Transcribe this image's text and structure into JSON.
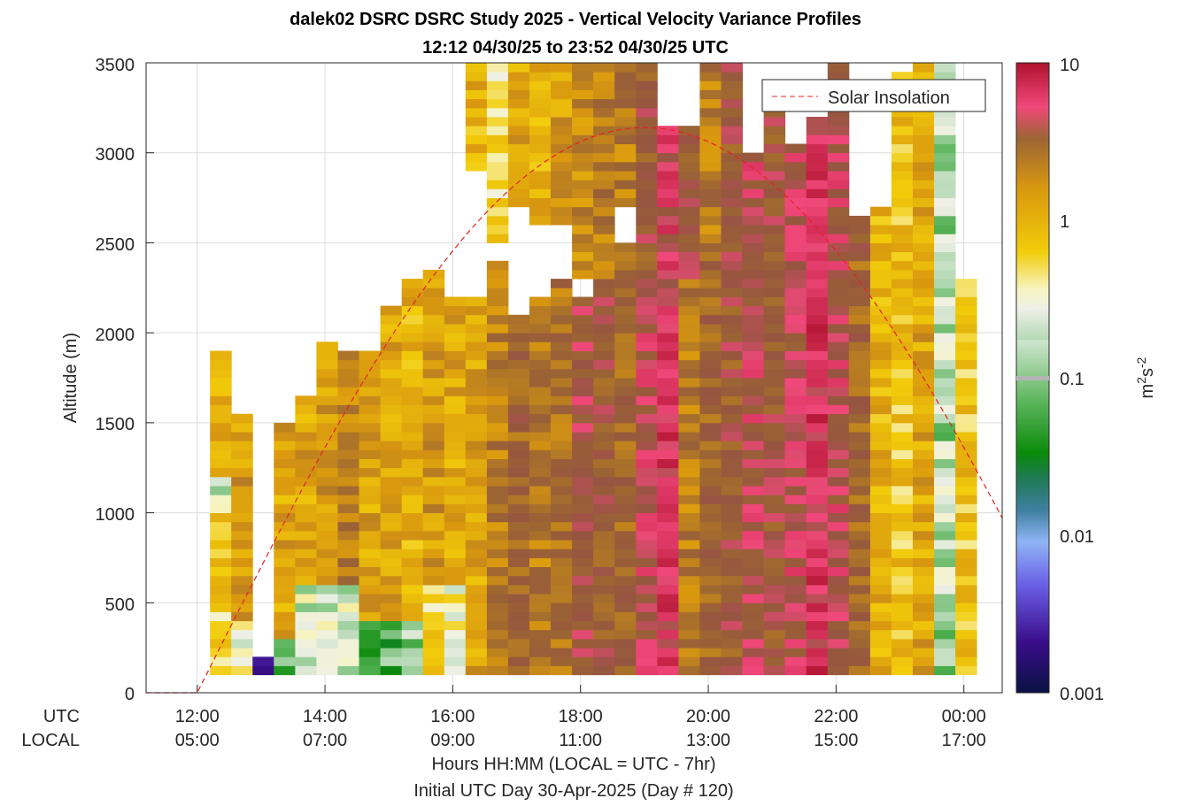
{
  "chart_data": {
    "type": "heatmap",
    "title": "dalek02 DSRC DSRC Study 2025 - Vertical Velocity Variance Profiles",
    "subtitle": "12:12 04/30/25 to 23:52 04/30/25  UTC",
    "ylabel": "Altitude (m)",
    "xlabel": "Hours HH:MM  (LOCAL = UTC - 7hr)",
    "xlabel2": "Initial UTC Day 30-Apr-2025 (Day # 120)",
    "row_labels": [
      "UTC",
      "LOCAL"
    ],
    "ylim": [
      0,
      3500
    ],
    "yticks": [
      "0",
      "500",
      "1000",
      "1500",
      "2000",
      "2500",
      "3000",
      "3500"
    ],
    "xlim_hours_utc": [
      11.2,
      24.6
    ],
    "xticks_utc": [
      "12:00",
      "14:00",
      "16:00",
      "18:00",
      "20:00",
      "22:00",
      "00:00"
    ],
    "xticks_local": [
      "05:00",
      "07:00",
      "09:00",
      "11:00",
      "13:00",
      "15:00",
      "17:00"
    ],
    "colorbar": {
      "label": "m^2s^-2",
      "scale": "log",
      "range": [
        0.001,
        10
      ],
      "ticks": [
        "0.001",
        "0.01",
        "0.1",
        "1",
        "10"
      ]
    },
    "legend": {
      "position": "top-right",
      "entries": [
        "Solar Insolation"
      ]
    },
    "solar_insolation": {
      "line_style": "dashed",
      "color": "#e8211f",
      "sunrise_utc_h": 12.0,
      "noon_utc_h": 19.0,
      "peak_altitude_m": 3140
    },
    "time_bin_minutes": 20,
    "altitude_bin_m": 50,
    "note_encoding": "each profile lists altitude segments [bottom_m, top_m, variance_m2s-2]",
    "profiles": [
      {
        "t": "12:12",
        "segments": [
          [
            100,
            500,
            0.2
          ],
          [
            500,
            1000,
            0.3
          ],
          [
            1000,
            1200,
            0.1
          ],
          [
            1200,
            1900,
            0.4
          ]
        ]
      },
      {
        "t": "12:32",
        "segments": [
          [
            100,
            400,
            0.12
          ],
          [
            400,
            1550,
            0.6
          ]
        ]
      },
      {
        "t": "12:52",
        "segments": [
          [
            100,
            200,
            0.003
          ]
        ]
      },
      {
        "t": "13:12",
        "segments": [
          [
            100,
            300,
            0.05
          ],
          [
            300,
            1500,
            0.5
          ]
        ]
      },
      {
        "t": "13:32",
        "segments": [
          [
            100,
            600,
            0.1
          ],
          [
            600,
            1650,
            0.5
          ]
        ]
      },
      {
        "t": "13:52",
        "segments": [
          [
            100,
            600,
            0.1
          ],
          [
            600,
            1950,
            0.6
          ]
        ]
      },
      {
        "t": "14:12",
        "segments": [
          [
            100,
            600,
            0.1
          ],
          [
            600,
            1900,
            0.9
          ]
        ]
      },
      {
        "t": "14:32",
        "segments": [
          [
            100,
            400,
            0.04
          ],
          [
            400,
            1900,
            0.5
          ]
        ]
      },
      {
        "t": "14:52",
        "segments": [
          [
            100,
            400,
            0.05
          ],
          [
            400,
            2150,
            0.5
          ]
        ]
      },
      {
        "t": "15:12",
        "segments": [
          [
            100,
            400,
            0.07
          ],
          [
            400,
            2300,
            0.4
          ]
        ]
      },
      {
        "t": "15:32",
        "segments": [
          [
            100,
            600,
            0.2
          ],
          [
            600,
            2350,
            0.6
          ]
        ]
      },
      {
        "t": "15:52",
        "segments": [
          [
            100,
            600,
            0.15
          ],
          [
            600,
            2200,
            0.5
          ]
        ]
      },
      {
        "t": "16:12",
        "segments": [
          [
            100,
            2200,
            0.5
          ],
          [
            2900,
            3500,
            0.4
          ]
        ]
      },
      {
        "t": "16:32",
        "segments": [
          [
            100,
            2400,
            1.0
          ],
          [
            2500,
            3500,
            0.2
          ]
        ]
      },
      {
        "t": "16:52",
        "segments": [
          [
            100,
            2100,
            1.5
          ],
          [
            2700,
            3500,
            0.5
          ]
        ]
      },
      {
        "t": "17:12",
        "segments": [
          [
            100,
            2200,
            1.0
          ],
          [
            2600,
            3500,
            0.4
          ]
        ]
      },
      {
        "t": "17:32",
        "segments": [
          [
            100,
            2300,
            1.2
          ],
          [
            2600,
            3500,
            0.6
          ]
        ]
      },
      {
        "t": "17:52",
        "segments": [
          [
            100,
            2200,
            2.5
          ],
          [
            2300,
            3500,
            0.8
          ]
        ]
      },
      {
        "t": "18:12",
        "segments": [
          [
            100,
            2300,
            2.0
          ],
          [
            2300,
            3500,
            1.0
          ]
        ]
      },
      {
        "t": "18:32",
        "segments": [
          [
            100,
            2500,
            1.5
          ],
          [
            2700,
            3500,
            1.0
          ]
        ]
      },
      {
        "t": "18:52",
        "segments": [
          [
            100,
            2300,
            3.0
          ],
          [
            2300,
            3500,
            2.0
          ]
        ]
      },
      {
        "t": "19:12",
        "segments": [
          [
            100,
            2000,
            5.0
          ],
          [
            2000,
            3150,
            4.0
          ]
        ]
      },
      {
        "t": "19:32",
        "segments": [
          [
            100,
            2300,
            1.0
          ],
          [
            2300,
            3150,
            2.0
          ]
        ]
      },
      {
        "t": "19:52",
        "segments": [
          [
            100,
            2400,
            1.5
          ],
          [
            2400,
            3500,
            1.0
          ]
        ]
      },
      {
        "t": "20:12",
        "segments": [
          [
            100,
            3500,
            2.0
          ]
        ]
      },
      {
        "t": "20:32",
        "segments": [
          [
            100,
            3000,
            3.0
          ]
        ]
      },
      {
        "t": "20:52",
        "segments": [
          [
            100,
            3300,
            2.0
          ]
        ]
      },
      {
        "t": "21:12",
        "segments": [
          [
            100,
            3050,
            3.0
          ]
        ]
      },
      {
        "t": "21:32",
        "segments": [
          [
            100,
            3200,
            5.0
          ]
        ]
      },
      {
        "t": "21:52",
        "segments": [
          [
            100,
            3500,
            3.0
          ]
        ]
      },
      {
        "t": "22:12",
        "segments": [
          [
            100,
            2650,
            1.5
          ]
        ]
      },
      {
        "t": "22:32",
        "segments": [
          [
            100,
            2700,
            0.4
          ]
        ]
      },
      {
        "t": "22:52",
        "segments": [
          [
            100,
            3450,
            0.3
          ]
        ]
      },
      {
        "t": "23:12",
        "segments": [
          [
            100,
            3500,
            0.5
          ]
        ]
      },
      {
        "t": "23:32",
        "segments": [
          [
            100,
            3500,
            0.08
          ]
        ]
      },
      {
        "t": "23:52",
        "segments": [
          [
            100,
            2300,
            0.3
          ]
        ]
      }
    ]
  }
}
